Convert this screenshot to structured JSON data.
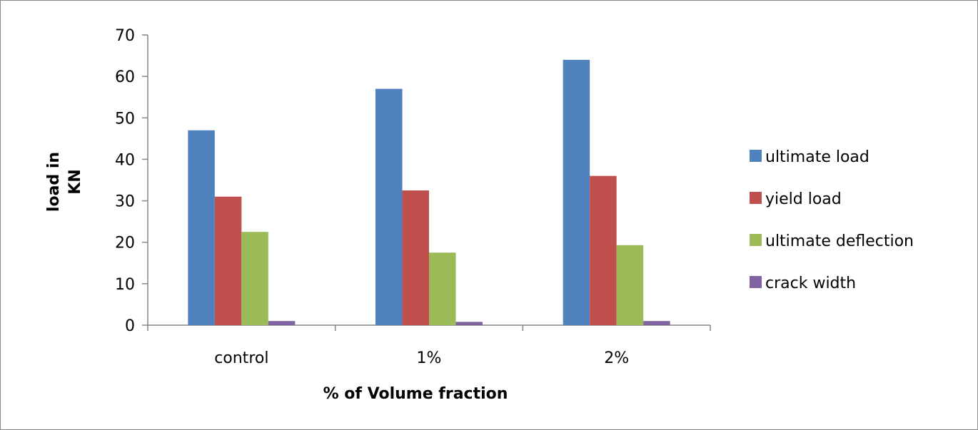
{
  "chart_data": {
    "type": "bar",
    "title": "",
    "xlabel": "% of Volume fraction",
    "ylabel_lines": [
      "load in",
      "KN"
    ],
    "categories": [
      "control",
      "1%",
      "2%"
    ],
    "ylim": [
      0,
      70
    ],
    "yticks": [
      0,
      10,
      20,
      30,
      40,
      50,
      60,
      70
    ],
    "grid": false,
    "legend_position": "right",
    "series": [
      {
        "name": "ultimate load",
        "color": "#4F81BD",
        "values": [
          47,
          57,
          64
        ]
      },
      {
        "name": "yield load",
        "color": "#C0504D",
        "values": [
          31,
          32.5,
          36
        ]
      },
      {
        "name": "ultimate deflection",
        "color": "#9BBB59",
        "values": [
          22.5,
          17.5,
          19.3
        ]
      },
      {
        "name": "crack width",
        "color": "#8064A2",
        "values": [
          1,
          0.8,
          1
        ]
      }
    ]
  }
}
